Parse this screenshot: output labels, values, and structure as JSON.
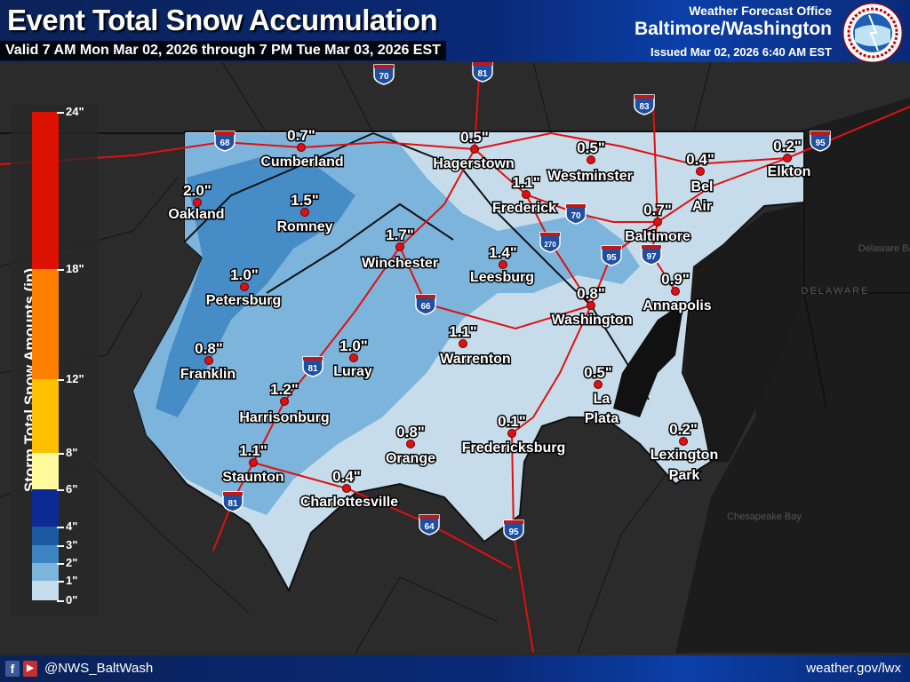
{
  "header": {
    "title": "Event Total Snow Accumulation",
    "valid": "Valid 7 AM Mon Mar 02, 2026 through 7 PM Tue Mar 03, 2026 EST",
    "office_label": "Weather Forecast Office",
    "office": "Baltimore/Washington",
    "issued": "Issued Mar 02, 2026 6:40 AM EST",
    "logo_text": "NATIONAL WEATHER SERVICE"
  },
  "legend": {
    "title": "Storm Total Snow Amounts (in)",
    "bins": [
      {
        "from": 0,
        "to": 1,
        "color": "#c6dcea"
      },
      {
        "from": 1,
        "to": 2,
        "color": "#7db4dc"
      },
      {
        "from": 2,
        "to": 3,
        "color": "#3c85c2"
      },
      {
        "from": 3,
        "to": 4,
        "color": "#1b59a3"
      },
      {
        "from": 4,
        "to": 6,
        "color": "#0d2a94"
      },
      {
        "from": 6,
        "to": 8,
        "color": "#fffa9c"
      },
      {
        "from": 8,
        "to": 12,
        "color": "#ffc000"
      },
      {
        "from": 12,
        "to": 18,
        "color": "#ff8000"
      },
      {
        "from": 18,
        "to": 24,
        "color": "#dd1100"
      }
    ],
    "ticks": [
      "0\"",
      "1\"",
      "2\"",
      "3\"",
      "4\"",
      "6\"",
      "8\"",
      "12\"",
      "18\"",
      "24\""
    ]
  },
  "cities": [
    {
      "name": "Cumberland",
      "value": "0.7\""
    },
    {
      "name": "Hagerstown",
      "value": "0.5\""
    },
    {
      "name": "Westminster",
      "value": "0.5\""
    },
    {
      "name": "Bel Air",
      "value": "0.4\""
    },
    {
      "name": "Elkton",
      "value": "0.2\""
    },
    {
      "name": "Oakland",
      "value": "2.0\""
    },
    {
      "name": "Romney",
      "value": "1.5\""
    },
    {
      "name": "Frederick",
      "value": "1.1\""
    },
    {
      "name": "Baltimore",
      "value": "0.7\""
    },
    {
      "name": "Winchester",
      "value": "1.7\""
    },
    {
      "name": "Leesburg",
      "value": "1.4\""
    },
    {
      "name": "Petersburg",
      "value": "1.0\""
    },
    {
      "name": "Washington",
      "value": "0.8\""
    },
    {
      "name": "Annapolis",
      "value": "0.9\""
    },
    {
      "name": "Franklin",
      "value": "0.8\""
    },
    {
      "name": "Luray",
      "value": "1.0\""
    },
    {
      "name": "Warrenton",
      "value": "1.1\""
    },
    {
      "name": "Harrisonburg",
      "value": "1.2\""
    },
    {
      "name": "La Plata",
      "value": "0.5\""
    },
    {
      "name": "Orange",
      "value": "0.8\""
    },
    {
      "name": "Fredericksburg",
      "value": "0.1\""
    },
    {
      "name": "Lexington Park",
      "value": "0.2\""
    },
    {
      "name": "Staunton",
      "value": "1.1\""
    },
    {
      "name": "Charlottesville",
      "value": "0.4\""
    }
  ],
  "interstates": [
    "68",
    "70",
    "81",
    "83",
    "95",
    "70",
    "270",
    "95",
    "97",
    "66",
    "81",
    "81",
    "64",
    "95"
  ],
  "map_labels": {
    "delaware": "DELAWARE",
    "delaware_bay": "Delaware Bay",
    "chesapeake_bay": "Chesapeake Bay"
  },
  "footer": {
    "handle": "@NWS_BaltWash",
    "website": "weather.gov/lwx",
    "facebook_icon": "f",
    "youtube_icon": "▶"
  },
  "colors": {
    "header_bg": "#0a2a78",
    "road": "#e01010",
    "city_dot": "#e01010",
    "land": "#2a2a2a",
    "water": "#1a1a1a"
  }
}
